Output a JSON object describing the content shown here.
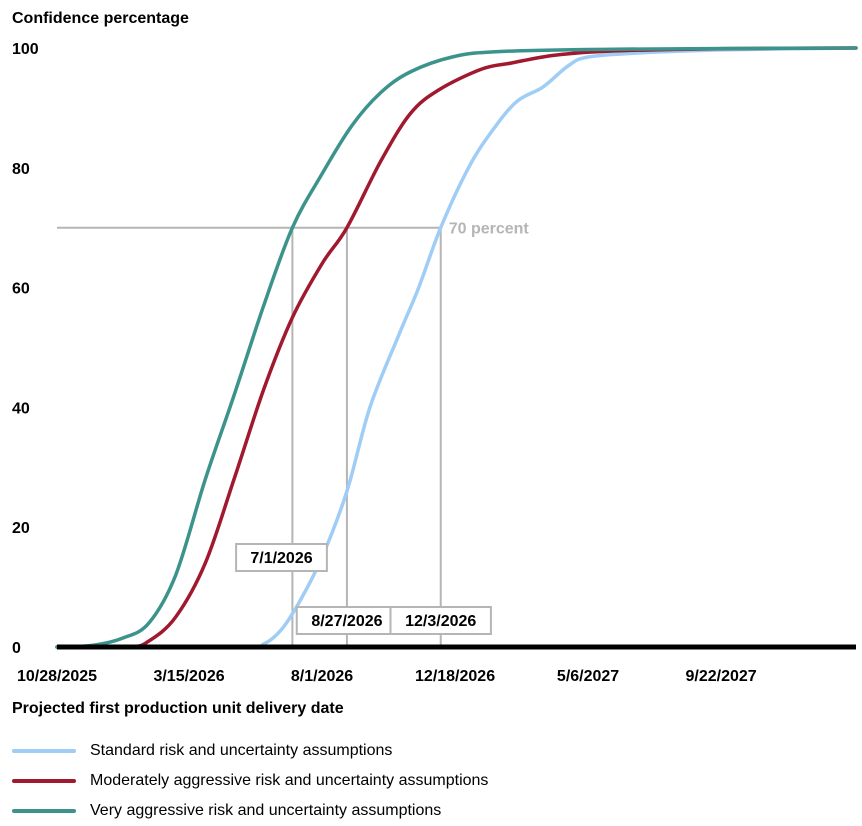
{
  "chart_data": {
    "type": "line",
    "title": "Confidence percentage",
    "xlabel": "Projected first production unit delivery date",
    "ylabel": "Confidence percentage",
    "ylim": [
      0,
      100
    ],
    "xlim": [
      "2025-10-28",
      "2028-02-10"
    ],
    "yticks": [
      0,
      20,
      40,
      60,
      80,
      100
    ],
    "xticks": [
      "10/28/2025",
      "3/15/2026",
      "8/1/2026",
      "12/18/2026",
      "5/6/2027",
      "9/22/2027"
    ],
    "reference_line": {
      "y": 70,
      "label": "70 percent"
    },
    "markers": [
      {
        "label": "7/1/2026",
        "date": "2026-07-01"
      },
      {
        "label": "8/27/2026",
        "date": "2026-08-27"
      },
      {
        "label": "12/3/2026",
        "date": "2026-12-03"
      }
    ],
    "grid": false,
    "legend_position": "bottom",
    "series": [
      {
        "name": "Standard risk and uncertainty assumptions",
        "color": "#9fcdf5",
        "points": [
          [
            "2025-10-28",
            0
          ],
          [
            "2026-05-10",
            0
          ],
          [
            "2026-06-01",
            0.5
          ],
          [
            "2026-06-20",
            3
          ],
          [
            "2026-07-10",
            8
          ],
          [
            "2026-08-01",
            15
          ],
          [
            "2026-08-27",
            26
          ],
          [
            "2026-09-20",
            40
          ],
          [
            "2026-10-20",
            52
          ],
          [
            "2026-11-10",
            60
          ],
          [
            "2026-12-03",
            70
          ],
          [
            "2027-01-01",
            80
          ],
          [
            "2027-01-25",
            86
          ],
          [
            "2027-02-20",
            91
          ],
          [
            "2027-03-20",
            93.5
          ],
          [
            "2027-04-15",
            97
          ],
          [
            "2027-05-06",
            98.5
          ],
          [
            "2027-07-01",
            99.2
          ],
          [
            "2027-10-01",
            99.7
          ],
          [
            "2028-02-10",
            100
          ]
        ]
      },
      {
        "name": "Moderately aggressive risk and uncertainty assumptions",
        "color": "#a0192f",
        "points": [
          [
            "2025-10-28",
            0
          ],
          [
            "2026-01-10",
            0
          ],
          [
            "2026-02-01",
            1
          ],
          [
            "2026-03-01",
            5
          ],
          [
            "2026-04-01",
            14
          ],
          [
            "2026-05-01",
            28
          ],
          [
            "2026-06-01",
            43
          ],
          [
            "2026-07-01",
            55
          ],
          [
            "2026-08-01",
            64
          ],
          [
            "2026-08-27",
            70
          ],
          [
            "2026-10-01",
            81
          ],
          [
            "2026-11-01",
            89
          ],
          [
            "2026-12-01",
            93
          ],
          [
            "2027-01-15",
            96.5
          ],
          [
            "2027-02-15",
            97.5
          ],
          [
            "2027-04-01",
            98.8
          ],
          [
            "2027-06-01",
            99.5
          ],
          [
            "2027-10-01",
            99.9
          ],
          [
            "2028-02-10",
            100
          ]
        ]
      },
      {
        "name": "Very aggressive risk and uncertainty assumptions",
        "color": "#3c938c",
        "points": [
          [
            "2025-10-28",
            0
          ],
          [
            "2025-12-05",
            0.3
          ],
          [
            "2026-01-05",
            1.5
          ],
          [
            "2026-02-01",
            4
          ],
          [
            "2026-03-01",
            12
          ],
          [
            "2026-04-01",
            28
          ],
          [
            "2026-05-01",
            42
          ],
          [
            "2026-06-01",
            57
          ],
          [
            "2026-07-01",
            70
          ],
          [
            "2026-08-01",
            79
          ],
          [
            "2026-09-01",
            87
          ],
          [
            "2026-10-01",
            92.5
          ],
          [
            "2026-11-01",
            96
          ],
          [
            "2026-12-15",
            98.5
          ],
          [
            "2027-02-01",
            99.4
          ],
          [
            "2027-06-01",
            99.8
          ],
          [
            "2028-02-10",
            100
          ]
        ]
      }
    ]
  }
}
